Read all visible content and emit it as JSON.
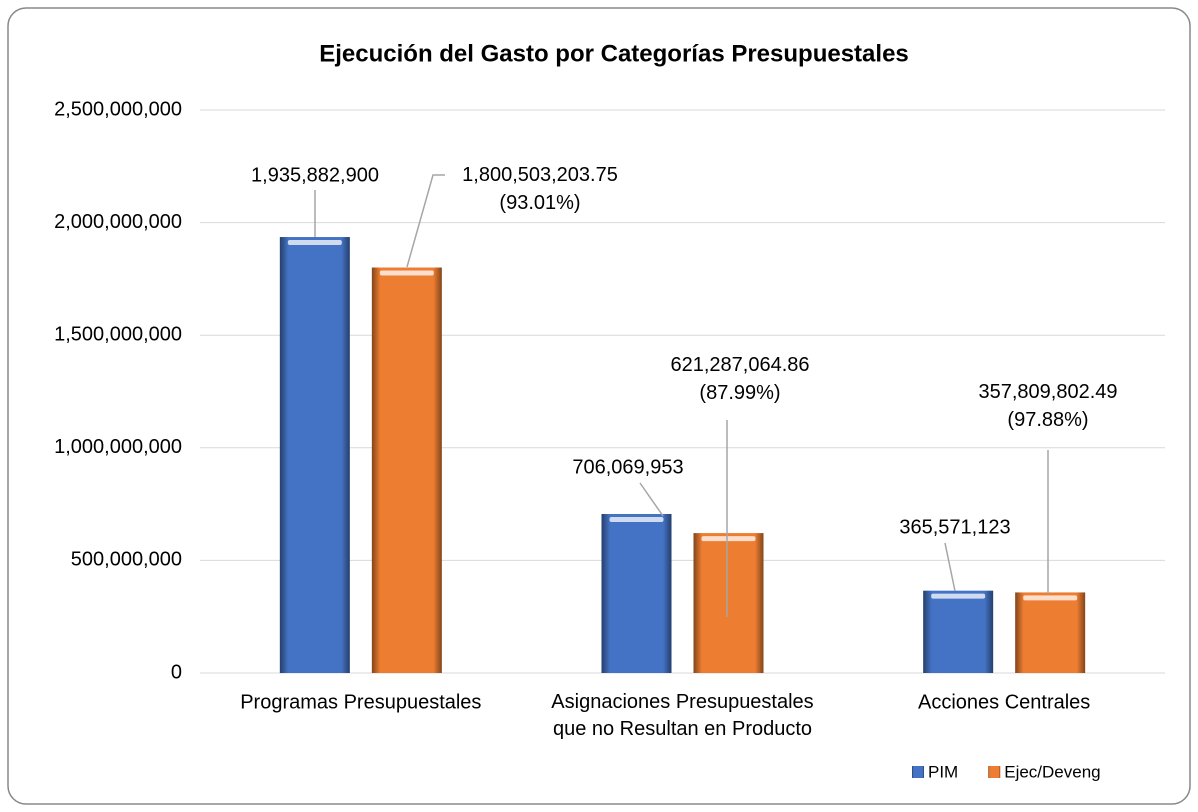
{
  "chart_data": {
    "type": "bar",
    "title": "Ejecución del Gasto por Categorías Presupuestales",
    "categories": [
      "Programas Presupuestales",
      "Asignaciones Presupuestales\nque no Resultan en Producto",
      "Acciones Centrales"
    ],
    "series": [
      {
        "name": "PIM",
        "color": "#4472c4",
        "values": [
          1935882900,
          706069953,
          365571123
        ],
        "value_labels": [
          "1,935,882,900",
          "706,069,953",
          "365,571,123"
        ]
      },
      {
        "name": "Ejec/Deveng",
        "color": "#ed7d31",
        "values": [
          1800503203.75,
          621287064.86,
          357809802.49
        ],
        "value_labels": [
          "1,800,503,203.75\n(93.01%)",
          "621,287,064.86\n(87.99%)",
          "357,809,802.49\n(97.88%)"
        ]
      }
    ],
    "ylim": [
      0,
      2500000000
    ],
    "yticks": [
      0,
      {
        "value": 500000000,
        "label": "500,000,000"
      },
      {
        "value": 1000000000,
        "label": "1,000,000,000"
      },
      {
        "value": 1500000000,
        "label": "1,500,000,000"
      },
      {
        "value": 2000000000,
        "label": "2,000,000,000"
      },
      {
        "value": 2500000000,
        "label": "2,500,000,000"
      }
    ],
    "grid": true,
    "legend": "bottom-right"
  }
}
